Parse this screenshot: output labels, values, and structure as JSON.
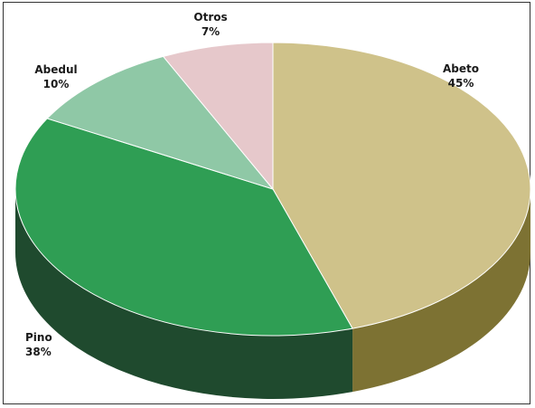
{
  "chart_data": {
    "type": "pie",
    "style": "3d",
    "slices": [
      {
        "label": "Abeto",
        "value_label": "45%",
        "value": 45,
        "top_color": "#cfc28a",
        "side_color": "#7d7233"
      },
      {
        "label": "Pino",
        "value_label": "38%",
        "value": 38,
        "top_color": "#2f9e54",
        "side_color": "#1f4a2e"
      },
      {
        "label": "Abedul",
        "value_label": "10%",
        "value": 10,
        "top_color": "#8fc8a6",
        "side_color": "#4f7a60"
      },
      {
        "label": "Otros",
        "value_label": "7%",
        "value": 7,
        "top_color": "#e6c8cb",
        "side_color": "#9a7f82"
      }
    ]
  }
}
